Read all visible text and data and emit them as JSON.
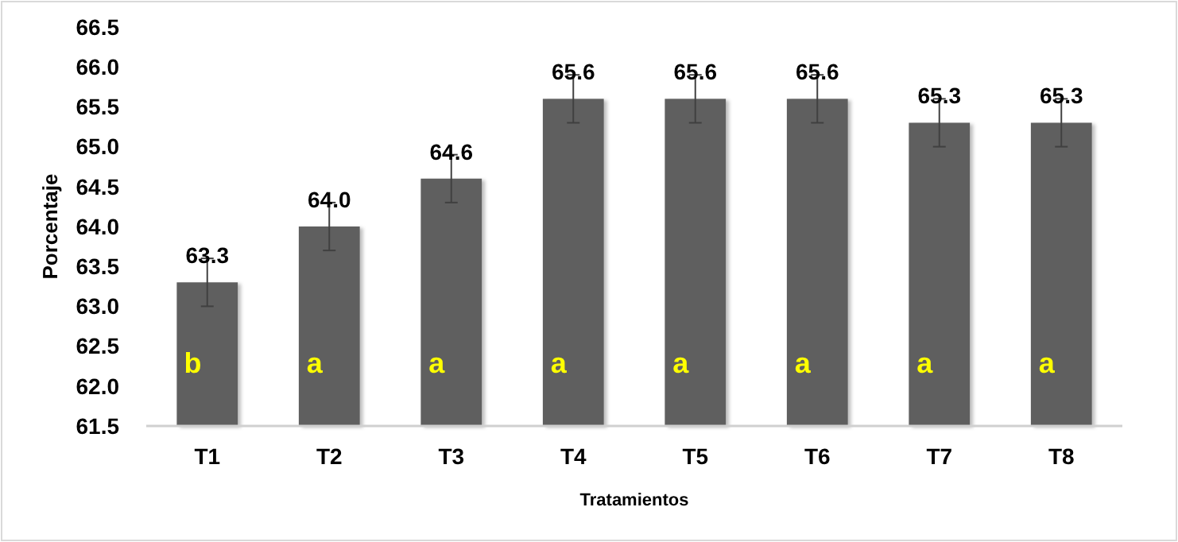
{
  "chart_data": {
    "type": "bar",
    "xlabel": "Tratamientos",
    "ylabel": "Porcentaje",
    "categories": [
      "T1",
      "T2",
      "T3",
      "T4",
      "T5",
      "T6",
      "T7",
      "T8"
    ],
    "values": [
      63.3,
      64.0,
      64.6,
      65.6,
      65.6,
      65.6,
      65.3,
      65.3
    ],
    "errors": [
      0.3,
      0.3,
      0.3,
      0.3,
      0.3,
      0.3,
      0.3,
      0.3
    ],
    "color": "#5f5f5f",
    "value_labels": [
      "63.3",
      "64.0",
      "64.6",
      "65.6",
      "65.6",
      "65.6",
      "65.3",
      "65.3"
    ],
    "ylim": [
      61.5,
      66.5
    ],
    "yticks": [
      {
        "value": 61.5,
        "label": "61.5"
      },
      {
        "value": 62,
        "label": "62.0"
      },
      {
        "value": 62.5,
        "label": "62.5"
      },
      {
        "value": 63,
        "label": "63.0"
      },
      {
        "value": 63.5,
        "label": "63.5"
      },
      {
        "value": 64,
        "label": "64.0"
      },
      {
        "value": 64.5,
        "label": "64.5"
      },
      {
        "value": 65,
        "label": "65.0"
      },
      {
        "value": 65.5,
        "label": "65.5"
      },
      {
        "value": 66,
        "label": "66.0"
      },
      {
        "value": 66.5,
        "label": "66.5"
      }
    ],
    "grid": false,
    "annotations": [
      "b",
      "a",
      "a",
      "a",
      "a",
      "a",
      "a",
      "a"
    ]
  }
}
